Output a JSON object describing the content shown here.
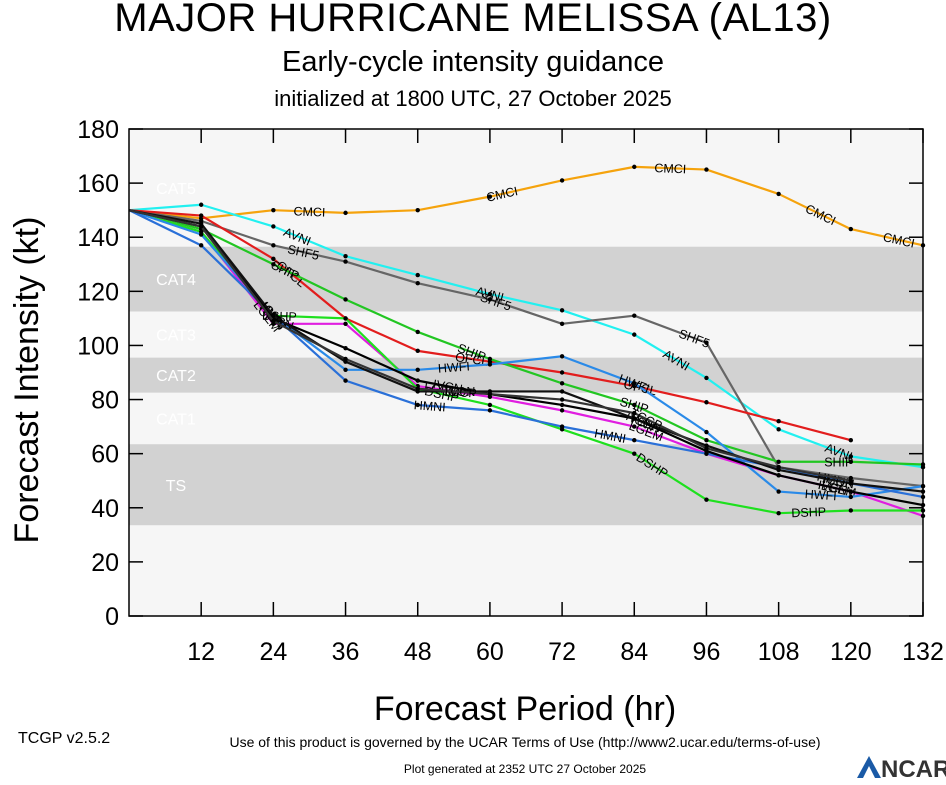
{
  "titles": {
    "main": "MAJOR HURRICANE MELISSA (AL13)",
    "sub": "Early-cycle intensity guidance",
    "init": "initialized at 1800 UTC, 27 October 2025"
  },
  "footer": {
    "terms": "Use of this product is governed by the UCAR Terms of Use (http://www2.ucar.edu/terms-of-use)",
    "version": "TCGP v2.5.2",
    "generated": "Plot generated at 2352 UTC   27 October 2025",
    "logo_text": "NCAR"
  },
  "chart_data": {
    "type": "line",
    "xlabel": "Forecast Period (hr)",
    "ylabel": "Forecast Intensity (kt)",
    "xlim": [
      0,
      132
    ],
    "ylim": [
      0,
      180
    ],
    "xticks": [
      12,
      24,
      36,
      48,
      60,
      72,
      84,
      96,
      108,
      120,
      132
    ],
    "yticks": [
      0,
      20,
      40,
      60,
      80,
      100,
      120,
      140,
      160,
      180
    ],
    "bands": [
      {
        "label": "CAT5",
        "from": 137,
        "to": 180,
        "color": "#f6f6f6"
      },
      {
        "label": "CAT4",
        "from": 113,
        "to": 136,
        "color": "#d2d2d2"
      },
      {
        "label": "CAT3",
        "from": 96,
        "to": 112,
        "color": "#f6f6f6"
      },
      {
        "label": "CAT2",
        "from": 83,
        "to": 95,
        "color": "#d2d2d2"
      },
      {
        "label": "CAT1",
        "from": 64,
        "to": 82,
        "color": "#f6f6f6"
      },
      {
        "label": "TS",
        "from": 34,
        "to": 63,
        "color": "#d2d2d2"
      },
      {
        "label": "",
        "from": 0,
        "to": 33,
        "color": "#f6f6f6"
      }
    ],
    "series": [
      {
        "name": "CMCI",
        "color": "#f5a30d",
        "x": [
          0,
          12,
          24,
          36,
          48,
          60,
          72,
          84,
          96,
          108,
          120,
          132
        ],
        "y": [
          150,
          147,
          150,
          149,
          150,
          155,
          161,
          166,
          165,
          156,
          143,
          137
        ],
        "labels": [
          30,
          62,
          90,
          115,
          128
        ]
      },
      {
        "name": "AVNI",
        "color": "#22f0f0",
        "x": [
          0,
          12,
          24,
          36,
          48,
          60,
          72,
          84,
          96,
          108,
          120,
          132
        ],
        "y": [
          150,
          152,
          144,
          133,
          126,
          119,
          113,
          104,
          88,
          69,
          59,
          55
        ],
        "labels": [
          28,
          60,
          91,
          118
        ]
      },
      {
        "name": "SHF5",
        "color": "#666666",
        "x": [
          0,
          12,
          24,
          36,
          48,
          60,
          72,
          84,
          96,
          108,
          120,
          132
        ],
        "y": [
          150,
          146,
          137,
          131,
          123,
          117,
          108,
          111,
          101,
          55,
          51,
          48
        ],
        "labels": [
          29,
          61,
          94
        ]
      },
      {
        "name": "OFCL",
        "color": "#e21d1d",
        "x": [
          0,
          12,
          24,
          36,
          48,
          60,
          72,
          84,
          96,
          108,
          120
        ],
        "y": [
          150,
          148,
          132,
          110,
          98,
          94,
          90,
          85,
          79,
          72,
          65
        ],
        "labels": [
          27,
          57,
          85
        ]
      },
      {
        "name": "SHIP",
        "color": "#22c622",
        "x": [
          0,
          12,
          24,
          36,
          48,
          60,
          72,
          84,
          96,
          108,
          120,
          132
        ],
        "y": [
          150,
          143,
          130,
          117,
          105,
          95,
          86,
          78,
          65,
          57,
          57,
          56
        ],
        "labels": [
          26,
          57,
          84,
          118
        ]
      },
      {
        "name": "LGEM",
        "color": "#e01ee0",
        "x": [
          0,
          12,
          24,
          36,
          48,
          60,
          72,
          84,
          96,
          108,
          120,
          132
        ],
        "y": [
          150,
          142,
          108,
          108,
          85,
          81,
          76,
          70,
          60,
          52,
          46,
          37
        ],
        "labels": [
          23,
          52,
          86,
          118
        ]
      },
      {
        "name": "DSHP",
        "color": "#1ee01e",
        "x": [
          0,
          12,
          24,
          36,
          48,
          60,
          72,
          84,
          96,
          108,
          120,
          132
        ],
        "y": [
          150,
          142,
          111,
          110,
          84,
          78,
          69,
          60,
          43,
          38,
          39,
          39
        ],
        "labels": [
          25,
          52,
          87,
          113
        ]
      },
      {
        "name": "HWFI",
        "color": "#2a8ae8",
        "x": [
          0,
          12,
          24,
          36,
          48,
          60,
          72,
          84,
          96,
          108,
          120,
          132
        ],
        "y": [
          150,
          141,
          111,
          91,
          91,
          93,
          96,
          86,
          68,
          46,
          44,
          48
        ],
        "labels": [
          24,
          54,
          84,
          115
        ]
      },
      {
        "name": "HMNI",
        "color": "#2a70d8",
        "x": [
          0,
          12,
          24,
          36,
          48,
          60,
          72,
          84,
          96,
          108,
          120,
          132
        ],
        "y": [
          150,
          137,
          111,
          87,
          78,
          76,
          70,
          65,
          60,
          55,
          49,
          44
        ],
        "labels": [
          24,
          50,
          80,
          117
        ]
      },
      {
        "name": "IVCN",
        "color": "#000000",
        "x": [
          0,
          12,
          24,
          36,
          48,
          60,
          72,
          84,
          96,
          108,
          120,
          132
        ],
        "y": [
          150,
          144,
          110,
          99,
          87,
          82,
          78,
          73,
          61,
          52,
          46,
          41
        ],
        "labels": [
          25,
          53,
          85,
          117
        ]
      },
      {
        "name": "ICON",
        "color": "#111111",
        "x": [
          0,
          12,
          24,
          36,
          48,
          60,
          72,
          84,
          96,
          108,
          120,
          132
        ],
        "y": [
          150,
          145,
          111,
          94,
          83,
          83,
          83,
          73,
          63,
          54,
          49,
          46
        ],
        "labels": [
          24,
          55,
          86,
          118
        ]
      },
      {
        "name": "TCCP",
        "color": "#333333",
        "x": [
          0,
          12,
          24,
          36,
          48,
          60,
          72,
          84,
          96,
          108,
          120
        ],
        "y": [
          150,
          144,
          109,
          95,
          84,
          82,
          80,
          75,
          62,
          55,
          50
        ],
        "labels": [
          55,
          86
        ]
      }
    ]
  }
}
